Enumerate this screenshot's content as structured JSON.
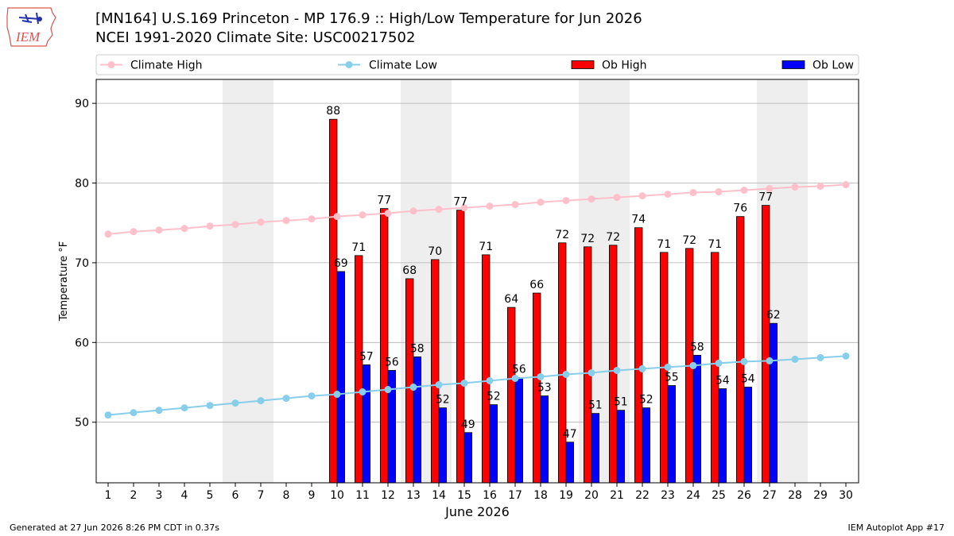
{
  "header": {
    "title_line1": "[MN164] U.S.169 Princeton - MP 176.9  :: High/Low Temperature for Jun 2026",
    "title_line2": "NCEI 1991-2020 Climate Site: USC00217502",
    "logo_text": "IEM"
  },
  "footer": {
    "generated": "Generated at 27 Jun 2026 8:26 PM CDT in 0.37s",
    "app": "IEM Autoplot App #17"
  },
  "chart_data": {
    "type": "bar",
    "xlabel": "June 2026",
    "ylabel": "Temperature °F",
    "ylim": [
      42.4,
      93.0
    ],
    "yticks": [
      50,
      60,
      70,
      80,
      90
    ],
    "grid": "horizontal",
    "legend_placement": "top",
    "weekend_shading_days": [
      6,
      7,
      13,
      14,
      20,
      21,
      27,
      28
    ],
    "days": [
      1,
      2,
      3,
      4,
      5,
      6,
      7,
      8,
      9,
      10,
      11,
      12,
      13,
      14,
      15,
      16,
      17,
      18,
      19,
      20,
      21,
      22,
      23,
      24,
      25,
      26,
      27,
      28,
      29,
      30
    ],
    "series": [
      {
        "name": "Climate High",
        "kind": "line",
        "color": "#ffc0cb",
        "values": [
          73.6,
          73.9,
          74.1,
          74.3,
          74.6,
          74.8,
          75.1,
          75.3,
          75.5,
          75.8,
          76.0,
          76.2,
          76.5,
          76.7,
          76.9,
          77.1,
          77.3,
          77.6,
          77.8,
          78.0,
          78.2,
          78.4,
          78.6,
          78.8,
          78.9,
          79.1,
          79.3,
          79.5,
          79.6,
          79.8
        ]
      },
      {
        "name": "Climate Low",
        "kind": "line",
        "color": "#87ceeb",
        "values": [
          50.9,
          51.2,
          51.5,
          51.8,
          52.1,
          52.4,
          52.7,
          53.0,
          53.3,
          53.5,
          53.8,
          54.1,
          54.4,
          54.7,
          54.9,
          55.2,
          55.5,
          55.7,
          56.0,
          56.2,
          56.5,
          56.7,
          56.9,
          57.1,
          57.4,
          57.6,
          57.7,
          57.9,
          58.1,
          58.3
        ]
      },
      {
        "name": "Ob High",
        "kind": "bar",
        "color": "#ff0000",
        "days": [
          10,
          11,
          12,
          13,
          14,
          15,
          16,
          17,
          18,
          19,
          20,
          21,
          22,
          23,
          24,
          25,
          26,
          27
        ],
        "values": [
          88,
          71,
          77,
          68,
          70,
          77,
          71,
          64,
          66,
          72,
          72,
          72,
          74,
          71,
          72,
          71,
          76,
          77
        ],
        "heights": [
          88.0,
          70.9,
          76.8,
          68.0,
          70.4,
          76.6,
          71.0,
          64.4,
          66.2,
          72.5,
          72.0,
          72.2,
          74.4,
          71.3,
          71.8,
          71.3,
          75.8,
          77.2
        ]
      },
      {
        "name": "Ob Low",
        "kind": "bar",
        "color": "#0000ff",
        "days": [
          10,
          11,
          12,
          13,
          14,
          15,
          16,
          17,
          18,
          19,
          20,
          21,
          22,
          23,
          24,
          25,
          26,
          27
        ],
        "values": [
          69,
          57,
          56,
          58,
          52,
          49,
          52,
          56,
          53,
          47,
          51,
          51,
          52,
          55,
          58,
          54,
          54,
          62
        ],
        "heights": [
          68.9,
          57.2,
          56.5,
          58.2,
          51.8,
          48.7,
          52.2,
          55.6,
          53.3,
          47.5,
          51.1,
          51.5,
          51.8,
          54.6,
          58.4,
          54.2,
          54.4,
          62.4
        ]
      }
    ]
  }
}
